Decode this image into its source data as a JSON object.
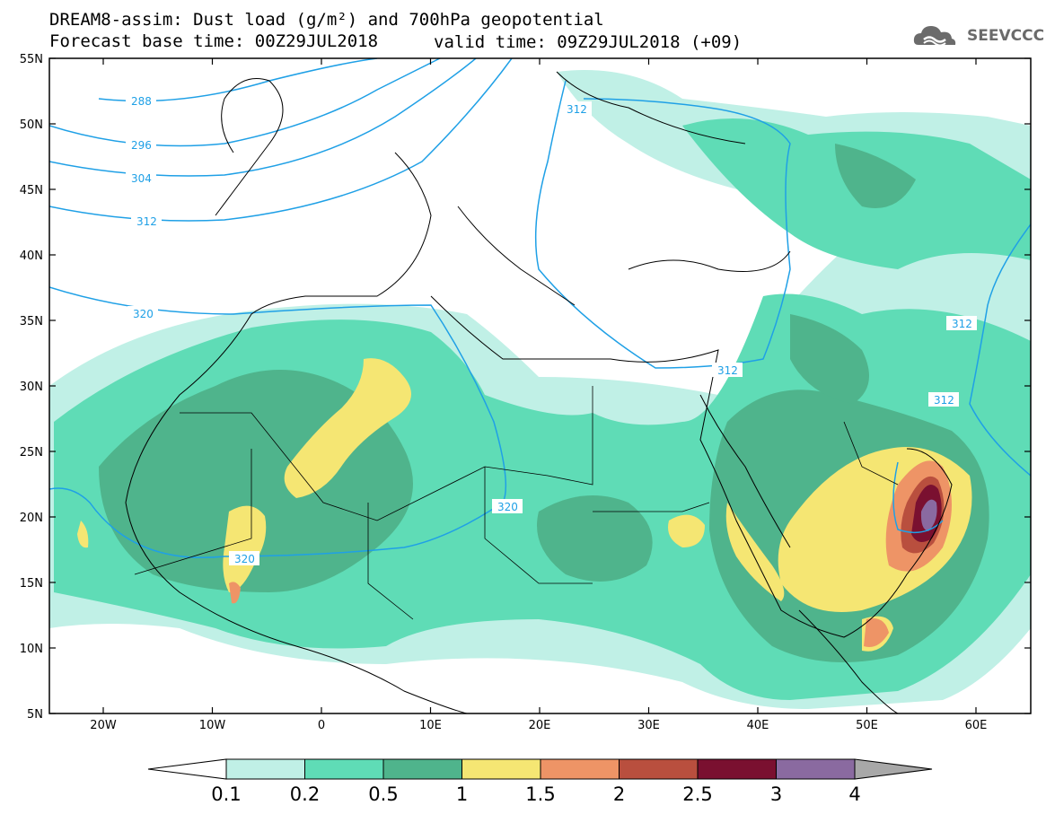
{
  "header": {
    "title_line1": "DREAM8-assim: Dust load (g/m²) and 700hPa geopotential",
    "title_line2": "Forecast base time: 00Z29JUL2018",
    "valid_time": "valid time: 09Z29JUL2018 (+09)",
    "logo_text": "SEEVCCC",
    "logo_icon": "cloud-icon"
  },
  "map": {
    "lat_labels": [
      "55N",
      "50N",
      "45N",
      "40N",
      "35N",
      "30N",
      "25N",
      "20N",
      "15N",
      "10N",
      "5N"
    ],
    "lon_labels": [
      "20W",
      "10W",
      "0",
      "10E",
      "20E",
      "30E",
      "40E",
      "50E",
      "60E"
    ],
    "contour_labels": [
      "288",
      "296",
      "304",
      "312",
      "320",
      "312",
      "312",
      "312",
      "320",
      "320",
      "312"
    ],
    "contour_color": "#1fa0e6",
    "background": "#ffffff"
  },
  "colorbar": {
    "ticks": [
      "0.1",
      "0.2",
      "0.5",
      "1",
      "1.5",
      "2",
      "2.5",
      "3",
      "4"
    ],
    "colors": [
      "#c0f0e6",
      "#5fdcb6",
      "#4fb48c",
      "#f5e673",
      "#ee9466",
      "#b94f3e",
      "#7a1030",
      "#8a6aa0",
      "#a8a8a8"
    ]
  }
}
